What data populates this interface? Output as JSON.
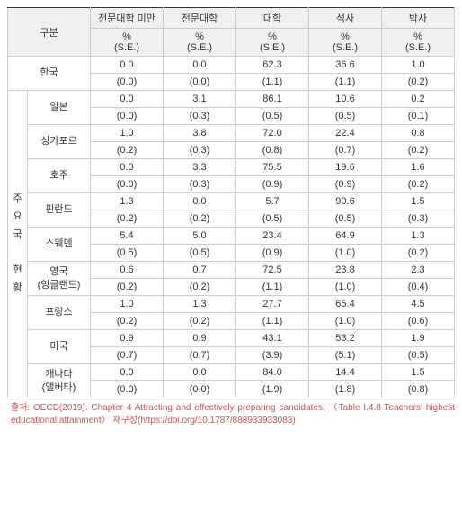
{
  "headers": {
    "category": "구분",
    "cols": [
      "전문대학 미만",
      "전문대학",
      "대학",
      "석사",
      "박사"
    ],
    "sub": "%\n(S.E.)"
  },
  "topRow": {
    "label": "한국",
    "vals": [
      "0.0",
      "0.0",
      "62.3",
      "36.6",
      "1.0"
    ],
    "ses": [
      "(0.0)",
      "(0.0)",
      "(1.1)",
      "(1.1)",
      "(0.2)"
    ]
  },
  "sideLabel": "주\n요\n국\n\n현\n황",
  "rows": [
    {
      "label": "일본",
      "vals": [
        "0.0",
        "3.1",
        "86.1",
        "10.6",
        "0.2"
      ],
      "ses": [
        "(0.0)",
        "(0.3)",
        "(0.5)",
        "(0.5)",
        "(0.1)"
      ]
    },
    {
      "label": "싱가포르",
      "vals": [
        "1.0",
        "3.8",
        "72.0",
        "22.4",
        "0.8"
      ],
      "ses": [
        "(0.2)",
        "(0.3)",
        "(0.8)",
        "(0.7)",
        "(0.2)"
      ]
    },
    {
      "label": "호주",
      "vals": [
        "0.0",
        "3.3",
        "75.5",
        "19.6",
        "1.6"
      ],
      "ses": [
        "(0.0)",
        "(0.3)",
        "(0.9)",
        "(0.9)",
        "(0.2)"
      ]
    },
    {
      "label": "핀란드",
      "vals": [
        "1.3",
        "0.0",
        "5.7",
        "90.6",
        "1.5"
      ],
      "ses": [
        "(0.2)",
        "(0.2)",
        "(0.5)",
        "(0.5)",
        "(0.3)"
      ]
    },
    {
      "label": "스웨덴",
      "vals": [
        "5.4",
        "5.0",
        "23.4",
        "64.9",
        "1.3"
      ],
      "ses": [
        "(0.5)",
        "(0.5)",
        "(0.9)",
        "(1.0)",
        "(0.2)"
      ]
    },
    {
      "label": "영국\n(잉글랜드)",
      "vals": [
        "0.6",
        "0.7",
        "72.5",
        "23.8",
        "2.3"
      ],
      "ses": [
        "(0.2)",
        "(0.2)",
        "(1.1)",
        "(1.0)",
        "(0.4)"
      ]
    },
    {
      "label": "프랑스",
      "vals": [
        "1.0",
        "1.3",
        "27.7",
        "65.4",
        "4.5"
      ],
      "ses": [
        "(0.2)",
        "(0.2)",
        "(1.1)",
        "(1.0)",
        "(0.6)"
      ]
    },
    {
      "label": "미국",
      "vals": [
        "0.9",
        "0.9",
        "43.1",
        "53.2",
        "1.9"
      ],
      "ses": [
        "(0.7)",
        "(0.7)",
        "(3.9)",
        "(5.1)",
        "(0.5)"
      ]
    },
    {
      "label": "캐나다\n(앨버타)",
      "vals": [
        "0.0",
        "0.0",
        "84.0",
        "14.4",
        "1.5"
      ],
      "ses": [
        "(0.0)",
        "(0.0)",
        "(1.9)",
        "(1.8)",
        "(0.8)"
      ]
    }
  ],
  "source": "출처: OECD(2019). Chapter 4 Attracting and effectively preparing candidates, 〈Table I.4.8 Teachers' highest educational attainment〉 재구성(https://doi.org/10.1787/888933933083)"
}
